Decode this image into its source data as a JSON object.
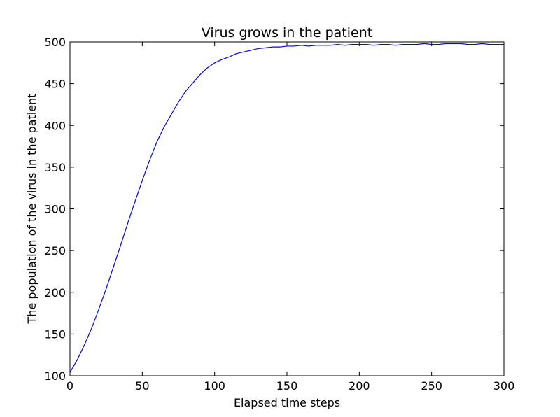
{
  "chart_data": {
    "type": "line",
    "title": "Virus grows in the patient",
    "xlabel": "Elapsed time steps",
    "ylabel": "The population of the virus in the patient",
    "xlim": [
      0,
      300
    ],
    "ylim": [
      100,
      500
    ],
    "xticks": [
      0,
      50,
      100,
      150,
      200,
      250,
      300
    ],
    "yticks": [
      100,
      150,
      200,
      250,
      300,
      350,
      400,
      450,
      500
    ],
    "grid": false,
    "series": [
      {
        "color": "#0000ff",
        "x": [
          0,
          5,
          10,
          15,
          20,
          25,
          30,
          35,
          40,
          45,
          50,
          55,
          60,
          65,
          70,
          75,
          80,
          85,
          90,
          95,
          100,
          105,
          110,
          115,
          120,
          125,
          130,
          135,
          140,
          145,
          150,
          155,
          160,
          165,
          170,
          175,
          180,
          185,
          190,
          195,
          200,
          205,
          210,
          215,
          220,
          225,
          230,
          235,
          240,
          245,
          250,
          255,
          260,
          265,
          270,
          275,
          280,
          285,
          290,
          295,
          300
        ],
        "values": [
          104,
          119,
          137,
          157,
          180,
          204,
          230,
          256,
          283,
          309,
          334,
          358,
          380,
          398,
          413,
          428,
          441,
          451,
          461,
          469,
          475,
          479,
          482,
          486,
          488,
          490,
          492,
          493,
          494,
          494,
          495,
          495,
          496,
          495,
          496,
          496,
          496,
          497,
          496,
          497,
          497,
          497,
          496,
          497,
          497,
          496,
          497,
          497,
          497,
          498,
          497,
          497,
          498,
          498,
          498,
          497,
          497,
          498,
          497,
          497,
          497
        ]
      }
    ]
  }
}
